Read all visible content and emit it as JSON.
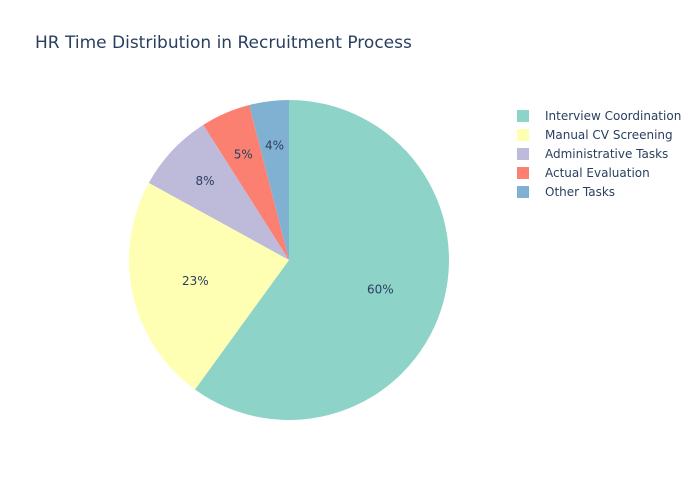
{
  "chart_data": {
    "type": "pie",
    "title": "HR Time Distribution in Recruitment Process",
    "categories": [
      "Interview Coordination",
      "Manual CV Screening",
      "Administrative Tasks",
      "Actual Evaluation",
      "Other Tasks"
    ],
    "values": [
      60,
      23,
      8,
      5,
      4
    ],
    "data_labels": [
      "60%",
      "23%",
      "8%",
      "5%",
      "4%"
    ],
    "colors": [
      "#8dd3c7",
      "#ffffb3",
      "#bebada",
      "#fb8072",
      "#80b1d3"
    ],
    "direction": "clockwise",
    "legend_position": "top-right"
  }
}
